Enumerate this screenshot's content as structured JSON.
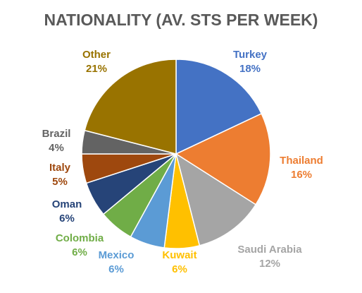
{
  "chart_data": {
    "type": "pie",
    "title": "NATIONALITY (AV. STS PER WEEK)",
    "categories": [
      "Turkey",
      "Thailand",
      "Saudi Arabia",
      "Kuwait",
      "Mexico",
      "Colombia",
      "Oman",
      "Italy",
      "Brazil",
      "Other"
    ],
    "values": [
      18,
      16,
      12,
      6,
      6,
      6,
      6,
      5,
      4,
      21
    ],
    "value_labels": [
      "18%",
      "16%",
      "12%",
      "6%",
      "6%",
      "6%",
      "6%",
      "5%",
      "4%",
      "21%"
    ],
    "colors": [
      "#4472c4",
      "#ed7d31",
      "#a5a5a5",
      "#ffc000",
      "#5b9bd5",
      "#70ad47",
      "#264478",
      "#9e480e",
      "#636363",
      "#997300"
    ]
  }
}
